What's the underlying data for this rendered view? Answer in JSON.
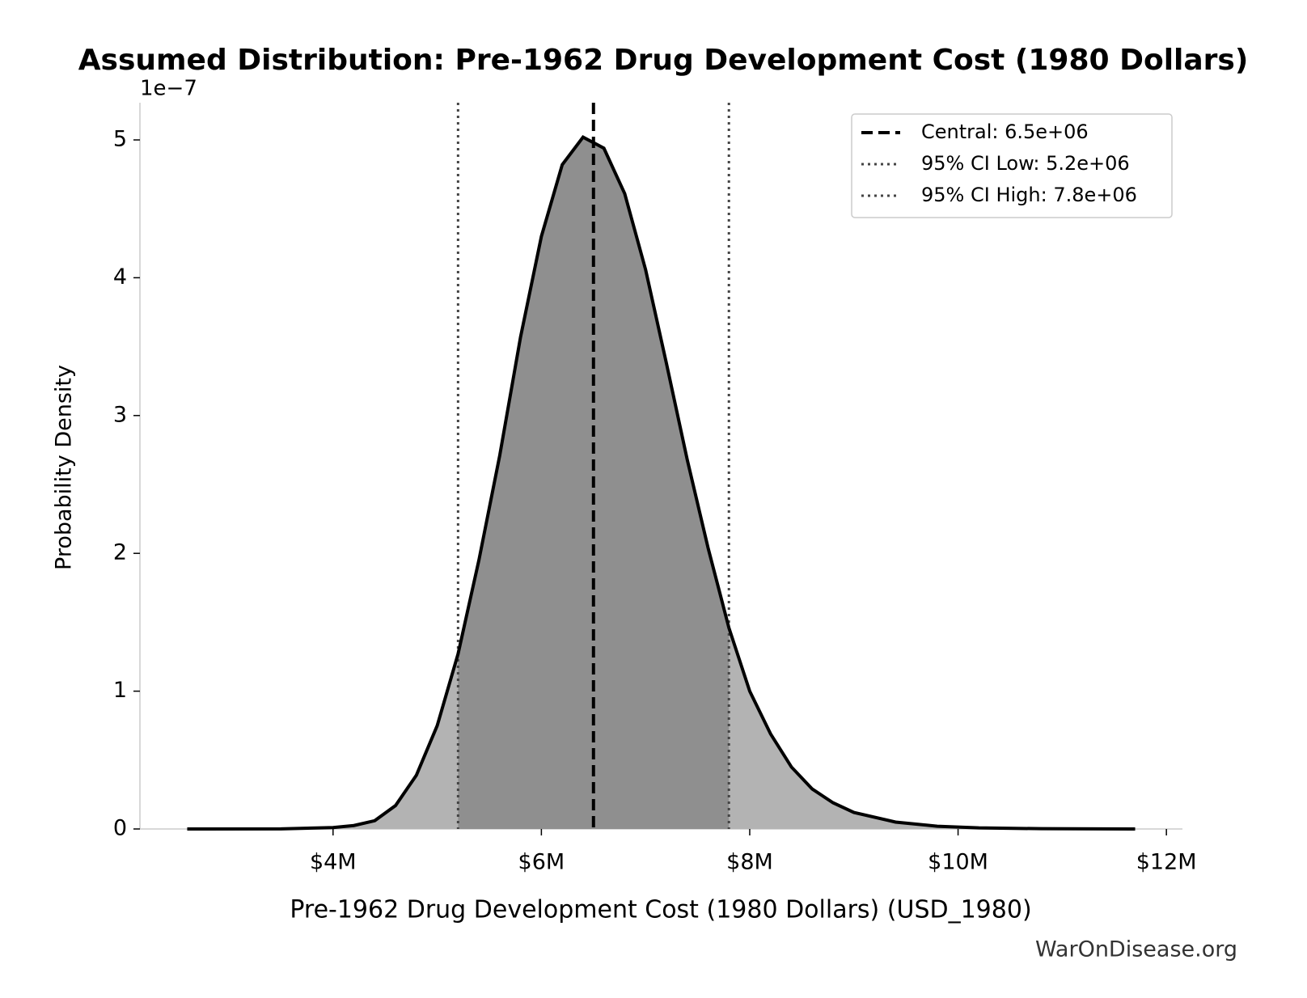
{
  "chart_data": {
    "type": "density",
    "title": "Assumed Distribution: Pre-1962 Drug Development Cost (1980 Dollars)",
    "xlabel": "Pre-1962 Drug Development Cost (1980 Dollars) (USD_1980)",
    "ylabel": "Probability Density",
    "y_offset_label": "1e−7",
    "watermark": "WarOnDisease.org",
    "x": [
      2600000,
      3500000,
      4000000,
      4200000,
      4400000,
      4600000,
      4800000,
      5000000,
      5200000,
      5400000,
      5600000,
      5800000,
      6000000,
      6200000,
      6400000,
      6600000,
      6800000,
      7000000,
      7200000,
      7400000,
      7600000,
      7800000,
      8000000,
      8200000,
      8400000,
      8600000,
      8800000,
      9000000,
      9400000,
      9800000,
      10200000,
      10800000,
      11700000
    ],
    "values": [
      0,
      0.001,
      0.01,
      0.025,
      0.06,
      0.17,
      0.39,
      0.75,
      1.27,
      1.95,
      2.71,
      3.57,
      4.3,
      4.82,
      5.02,
      4.94,
      4.61,
      4.06,
      3.38,
      2.68,
      2.04,
      1.46,
      1.0,
      0.69,
      0.45,
      0.29,
      0.19,
      0.12,
      0.05,
      0.02,
      0.008,
      0.002,
      0
    ],
    "fill_color": "#b3b3b3",
    "ci_fill_color": "#8f8f8f",
    "line_color": "#000000",
    "reference_lines": [
      {
        "name": "Central: 6.5e+06",
        "value": 6500000,
        "style": "dashed",
        "color": "#000000"
      },
      {
        "name": "95% CI Low: 5.2e+06",
        "value": 5200000,
        "style": "dotted",
        "color": "#444444"
      },
      {
        "name": "95% CI High: 7.8e+06",
        "value": 7800000,
        "style": "dotted",
        "color": "#444444"
      }
    ],
    "xlim": [
      2146000,
      12154000
    ],
    "xticks": [
      {
        "value": 4000000,
        "label": "$4M"
      },
      {
        "value": 6000000,
        "label": "$6M"
      },
      {
        "value": 8000000,
        "label": "$8M"
      },
      {
        "value": 10000000,
        "label": "$10M"
      },
      {
        "value": 12000000,
        "label": "$12M"
      }
    ],
    "ylim": [
      0,
      5.27
    ],
    "yticks": [
      0,
      1,
      2,
      3,
      4,
      5
    ],
    "legend": "upper right"
  }
}
